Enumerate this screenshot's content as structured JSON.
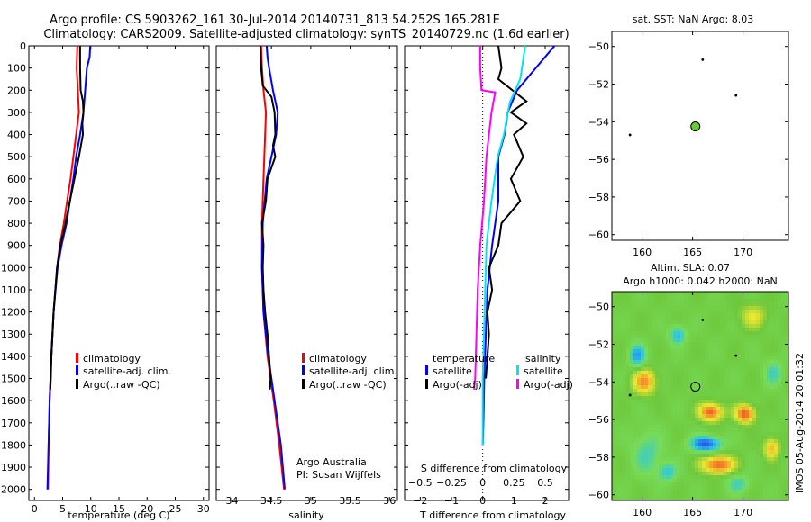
{
  "figure": {
    "title_line1": "Argo profile: CS 5903262_161 30-Jul-2014 20140731_813 54.252S 165.281E",
    "title_line2": "Climatology: CARS2009. Satellite-adjusted climatology: synTS_20140729.nc (1.6d earlier)",
    "side_stamp": "IMOS 05-Aug-2014 20:01:32"
  },
  "panels": {
    "temperature": {
      "xlabel": "temperature (deg C)",
      "legend": [
        "climatology",
        "satellite-adj. clim.",
        "Argo(..raw -QC)"
      ]
    },
    "salinity": {
      "xlabel": "salinity",
      "legend": [
        "climatology",
        "satellite-adj. clim.",
        "Argo(..raw -QC)"
      ],
      "credit_line1": "Argo Australia",
      "credit_line2": "PI: Susan Wijffels"
    },
    "difference": {
      "xlabel_bottom": "T difference from climatology",
      "xlabel_top": "S difference from climatology",
      "legend_temperature_title": "temperature",
      "legend_salinity_title": "salinity",
      "legend_temperature": [
        "satellite",
        "Argo(-adj)"
      ],
      "legend_salinity": [
        "satellite",
        "Argo(-adj)"
      ]
    },
    "map_sst": {
      "title": "sat. SST: NaN  Argo: 8.03"
    },
    "map_sla": {
      "title_line1": "Altim. SLA: 0.07",
      "title_line2": "Argo h1000: 0.042  h2000: NaN"
    }
  },
  "colors": {
    "climatology": "#ff0000",
    "satellite": "#0000ff",
    "argo": "#000000",
    "sat_salinity": "#00e5ee",
    "argo_salinity": "#ff00ff",
    "argo_marker": "#66cc33"
  },
  "chart_data": [
    {
      "id": "temperature",
      "type": "line",
      "xlabel": "temperature (deg C)",
      "ylabel": "",
      "xlim": [
        -1,
        31
      ],
      "ylim": [
        2050,
        0
      ],
      "xticks": [
        0,
        5,
        10,
        15,
        20,
        25,
        30
      ],
      "yticks": [
        0,
        100,
        200,
        300,
        400,
        500,
        600,
        700,
        800,
        900,
        1000,
        1100,
        1200,
        1300,
        1400,
        1500,
        1600,
        1700,
        1800,
        1900,
        2000
      ],
      "series": [
        {
          "name": "climatology",
          "color": "#ff0000",
          "depth": [
            0,
            100,
            200,
            300,
            400,
            500,
            600,
            700,
            800,
            900,
            1000,
            1200,
            1400,
            1600,
            1800,
            2000
          ],
          "values": [
            7.6,
            7.5,
            7.7,
            7.9,
            7.4,
            6.9,
            6.4,
            5.8,
            5.2,
            4.5,
            4.0,
            3.4,
            3.0,
            2.7,
            2.5,
            2.4
          ]
        },
        {
          "name": "satellite-adj. clim.",
          "color": "#0000ff",
          "depth": [
            0,
            50,
            100,
            200,
            300,
            400,
            500,
            600,
            700,
            800,
            900,
            1000,
            1200,
            1400,
            1600,
            1800,
            2000
          ],
          "values": [
            9.9,
            9.8,
            9.3,
            9.0,
            8.7,
            8.1,
            7.4,
            6.9,
            6.3,
            5.7,
            4.8,
            4.1,
            3.4,
            3.0,
            2.7,
            2.5,
            2.3
          ]
        },
        {
          "name": "Argo(..raw -QC)",
          "color": "#000000",
          "depth": [
            0,
            100,
            200,
            250,
            300,
            350,
            400,
            500,
            600,
            700,
            800,
            900,
            1000,
            1100,
            1200,
            1300,
            1400,
            1500,
            1550
          ],
          "values": [
            8.1,
            8.1,
            8.2,
            8.6,
            8.7,
            8.5,
            8.6,
            7.9,
            7.1,
            6.3,
            5.5,
            4.6,
            4.0,
            3.7,
            3.4,
            3.2,
            3.0,
            2.9,
            2.8
          ]
        }
      ]
    },
    {
      "id": "salinity",
      "type": "line",
      "xlabel": "salinity",
      "ylabel": "",
      "xlim": [
        33.8,
        36.1
      ],
      "ylim": [
        2050,
        0
      ],
      "xticks": [
        34,
        34.5,
        35,
        35.5,
        36
      ],
      "series": [
        {
          "name": "climatology",
          "color": "#ff0000",
          "depth": [
            0,
            100,
            200,
            300,
            400,
            500,
            600,
            800,
            1000,
            1200,
            1400,
            1600,
            1800,
            2000
          ],
          "values": [
            34.37,
            34.38,
            34.4,
            34.43,
            34.42,
            34.41,
            34.4,
            34.38,
            34.38,
            34.4,
            34.45,
            34.53,
            34.6,
            34.66
          ]
        },
        {
          "name": "satellite-adj. clim.",
          "color": "#0000ff",
          "depth": [
            0,
            50,
            100,
            200,
            300,
            400,
            500,
            600,
            800,
            1000,
            1200,
            1400,
            1600,
            1800,
            2000
          ],
          "values": [
            34.44,
            34.45,
            34.47,
            34.52,
            34.58,
            34.56,
            34.5,
            34.44,
            34.39,
            34.38,
            34.4,
            34.46,
            34.54,
            34.62,
            34.67
          ]
        },
        {
          "name": "Argo(..raw -QC)",
          "color": "#000000",
          "depth": [
            0,
            100,
            180,
            230,
            300,
            400,
            450,
            500,
            600,
            700,
            800,
            900,
            1000,
            1100,
            1200,
            1300,
            1400,
            1500,
            1550
          ],
          "values": [
            34.36,
            34.37,
            34.39,
            34.5,
            34.54,
            34.55,
            34.52,
            34.55,
            34.45,
            34.43,
            34.38,
            34.4,
            34.39,
            34.4,
            34.42,
            34.45,
            34.47,
            34.49,
            34.48
          ]
        }
      ]
    },
    {
      "id": "difference",
      "type": "line",
      "xlabel": "T difference from climatology",
      "x2label": "S difference from climatology",
      "xlim": [
        -2.5,
        2.75
      ],
      "x2lim": [
        -0.625,
        0.6875
      ],
      "ylim": [
        2050,
        0
      ],
      "xticks": [
        -2,
        -1,
        0,
        1,
        2
      ],
      "x2ticks": [
        -0.5,
        -0.25,
        0,
        0.25,
        0.5
      ],
      "series": [
        {
          "name": "temperature satellite",
          "axis": "T",
          "color": "#0000ff",
          "depth": [
            0,
            50,
            100,
            150,
            200,
            300,
            400,
            500,
            700,
            900,
            1100,
            1300,
            1500,
            1700,
            1800
          ],
          "values": [
            2.3,
            2.0,
            1.7,
            1.4,
            1.1,
            0.8,
            0.7,
            0.5,
            0.5,
            0.3,
            0.15,
            0.1,
            0.05,
            0.02,
            0.0
          ]
        },
        {
          "name": "temperature Argo(-adj)",
          "axis": "T",
          "color": "#000000",
          "depth": [
            0,
            100,
            150,
            250,
            300,
            350,
            400,
            500,
            600,
            700,
            800,
            900,
            1000,
            1100,
            1200,
            1300,
            1400,
            1500
          ],
          "values": [
            0.5,
            0.6,
            0.5,
            1.4,
            0.9,
            1.4,
            1.0,
            1.3,
            0.9,
            1.2,
            0.6,
            0.5,
            0.2,
            0.3,
            0.15,
            0.2,
            0.15,
            0.1
          ]
        },
        {
          "name": "salinity satellite",
          "axis": "S",
          "color": "#00e5ee",
          "depth": [
            0,
            80,
            150,
            250,
            300,
            400,
            500,
            700,
            900,
            1100,
            1300,
            1500,
            1700,
            1800
          ],
          "values": [
            0.34,
            0.32,
            0.3,
            0.22,
            0.2,
            0.17,
            0.12,
            0.07,
            0.03,
            0.02,
            0.01,
            0.0,
            0.0,
            0.0
          ]
        },
        {
          "name": "salinity Argo(-adj)",
          "axis": "S",
          "color": "#ff00ff",
          "depth": [
            0,
            100,
            200,
            210,
            300,
            400,
            500,
            700,
            900,
            1100,
            1300,
            1500,
            1550
          ],
          "values": [
            -0.02,
            -0.02,
            -0.01,
            0.1,
            0.07,
            0.05,
            0.03,
            0.01,
            -0.02,
            -0.04,
            -0.05,
            -0.06,
            -0.07
          ]
        }
      ]
    },
    {
      "id": "map_sst",
      "type": "scatter",
      "xlim": [
        157,
        174.5
      ],
      "ylim": [
        -60.3,
        -49.2
      ],
      "xticks": [
        160,
        165,
        170
      ],
      "yticks": [
        -50,
        -52,
        -54,
        -56,
        -58,
        -60
      ],
      "points": [
        {
          "role": "argo",
          "x": 165.28,
          "y": -54.25
        },
        {
          "role": "other",
          "x": 166.0,
          "y": -50.7
        },
        {
          "role": "other",
          "x": 169.3,
          "y": -52.6
        },
        {
          "role": "other",
          "x": 158.8,
          "y": -54.7
        }
      ]
    },
    {
      "id": "map_sla",
      "type": "heatmap",
      "xlim": [
        157,
        174.5
      ],
      "ylim": [
        -60.3,
        -49.2
      ],
      "xticks": [
        160,
        165,
        170
      ],
      "yticks": [
        -50,
        -52,
        -54,
        -56,
        -58,
        -60
      ],
      "points": [
        {
          "role": "argo",
          "x": 165.28,
          "y": -54.25
        },
        {
          "role": "other",
          "x": 166.0,
          "y": -50.7
        },
        {
          "role": "other",
          "x": 169.3,
          "y": -52.6
        },
        {
          "role": "other",
          "x": 158.8,
          "y": -54.7
        }
      ],
      "anomalies": [
        {
          "x": 166.3,
          "y": -57.3,
          "v": -1.0,
          "sx": 1.5,
          "sy": 0.4
        },
        {
          "x": 166.8,
          "y": -55.6,
          "v": 0.9,
          "sx": 1.2,
          "sy": 0.5
        },
        {
          "x": 170.2,
          "y": -55.7,
          "v": 0.9,
          "sx": 1.0,
          "sy": 0.5
        },
        {
          "x": 167.5,
          "y": -58.4,
          "v": 0.9,
          "sx": 1.6,
          "sy": 0.5
        },
        {
          "x": 160.2,
          "y": -54.0,
          "v": 0.7,
          "sx": 1.2,
          "sy": 0.7
        },
        {
          "x": 159.5,
          "y": -52.6,
          "v": -0.7,
          "sx": 0.8,
          "sy": 0.6
        },
        {
          "x": 163.5,
          "y": -51.5,
          "v": -0.6,
          "sx": 0.8,
          "sy": 0.5
        },
        {
          "x": 160.5,
          "y": -57.8,
          "v": -0.4,
          "sx": 1.5,
          "sy": 1.2
        },
        {
          "x": 172.8,
          "y": -57.5,
          "v": 0.6,
          "sx": 0.8,
          "sy": 0.6
        },
        {
          "x": 171.0,
          "y": -50.5,
          "v": 0.4,
          "sx": 1.5,
          "sy": 0.7
        },
        {
          "x": 162.5,
          "y": -58.8,
          "v": -0.5,
          "sx": 0.9,
          "sy": 0.5
        },
        {
          "x": 169.5,
          "y": -59.4,
          "v": -0.4,
          "sx": 1.2,
          "sy": 0.5
        },
        {
          "x": 173.0,
          "y": -53.5,
          "v": -0.4,
          "sx": 0.9,
          "sy": 0.7
        }
      ]
    }
  ]
}
